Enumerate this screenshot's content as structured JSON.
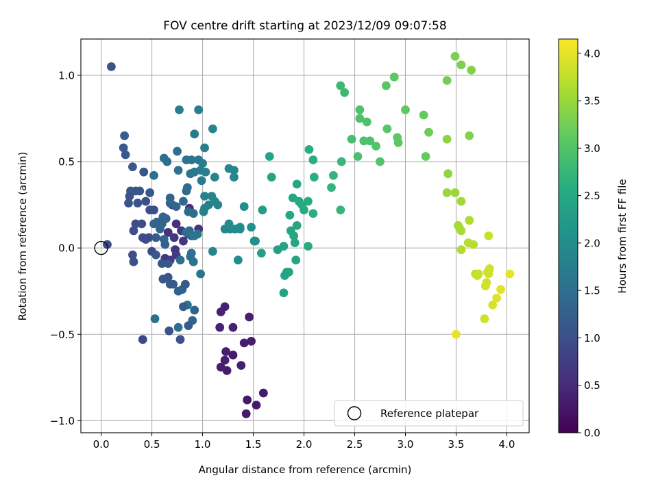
{
  "chart_data": {
    "type": "scatter",
    "title": "FOV centre drift starting at 2023/12/09 09:07:58",
    "xlabel": "Angular distance from reference (arcmin)",
    "ylabel": "Rotation from reference (arcmin)",
    "xlim": [
      -0.2,
      4.22
    ],
    "ylim": [
      -1.07,
      1.21
    ],
    "xticks": [
      0.0,
      0.5,
      1.0,
      1.5,
      2.0,
      2.5,
      3.0,
      3.5,
      4.0
    ],
    "xtick_labels": [
      "0.0",
      "0.5",
      "1.0",
      "1.5",
      "2.0",
      "2.5",
      "3.0",
      "3.5",
      "4.0"
    ],
    "yticks": [
      -1.0,
      -0.5,
      0.0,
      0.5,
      1.0
    ],
    "ytick_labels": [
      "−1.0",
      "−0.5",
      "0.0",
      "0.5",
      "1.0"
    ],
    "grid": true,
    "legend": {
      "position": "lower-right",
      "entries": [
        "Reference platepar"
      ]
    },
    "reference_point": {
      "x": 0.0,
      "y": 0.0,
      "marker": "open-circle"
    },
    "colorbar": {
      "label": "Hours from first FF file",
      "colormap": "viridis",
      "range": [
        0.0,
        4.15
      ],
      "ticks": [
        0.0,
        0.5,
        1.0,
        1.5,
        2.0,
        2.5,
        3.0,
        3.5,
        4.0
      ],
      "tick_labels": [
        "0.0",
        "0.5",
        "1.0",
        "1.5",
        "2.0",
        "2.5",
        "3.0",
        "3.5",
        "4.0"
      ]
    },
    "points": [
      [
        1.43,
        -0.96,
        0.3
      ],
      [
        1.44,
        -0.88,
        0.3
      ],
      [
        1.53,
        -0.91,
        0.3
      ],
      [
        1.6,
        -0.84,
        0.3
      ],
      [
        1.24,
        -0.71,
        0.3
      ],
      [
        1.3,
        -0.62,
        0.3
      ],
      [
        1.18,
        -0.69,
        0.35
      ],
      [
        1.22,
        -0.65,
        0.35
      ],
      [
        1.23,
        -0.6,
        0.35
      ],
      [
        1.38,
        -0.68,
        0.35
      ],
      [
        1.41,
        -0.55,
        0.35
      ],
      [
        1.48,
        -0.54,
        0.35
      ],
      [
        1.46,
        -0.4,
        0.35
      ],
      [
        1.3,
        -0.46,
        0.4
      ],
      [
        1.17,
        -0.46,
        0.4
      ],
      [
        1.18,
        -0.37,
        0.4
      ],
      [
        1.22,
        -0.34,
        0.4
      ],
      [
        0.96,
        0.11,
        0.6
      ],
      [
        0.87,
        0.23,
        0.6
      ],
      [
        0.74,
        0.14,
        0.6
      ],
      [
        0.66,
        0.09,
        0.6
      ],
      [
        0.58,
        0.13,
        0.6
      ],
      [
        0.72,
        0.06,
        0.65
      ],
      [
        0.81,
        0.04,
        0.65
      ],
      [
        0.86,
        0.08,
        0.65
      ],
      [
        0.73,
        -0.01,
        0.65
      ],
      [
        0.63,
        -0.06,
        0.65
      ],
      [
        0.68,
        -0.07,
        0.7
      ],
      [
        0.74,
        -0.04,
        0.7
      ],
      [
        0.79,
        0.1,
        0.7
      ],
      [
        0.7,
        0.25,
        0.7
      ],
      [
        0.1,
        1.05,
        1.05
      ],
      [
        0.23,
        0.65,
        1.2
      ],
      [
        0.22,
        0.58,
        1.2
      ],
      [
        0.24,
        0.54,
        1.15
      ],
      [
        0.31,
        0.47,
        1.15
      ],
      [
        0.42,
        0.44,
        1.1
      ],
      [
        0.48,
        0.32,
        1.1
      ],
      [
        0.29,
        0.33,
        1.1
      ],
      [
        0.34,
        0.33,
        1.1
      ],
      [
        0.38,
        0.33,
        1.1
      ],
      [
        0.28,
        0.3,
        1.05
      ],
      [
        0.27,
        0.26,
        1.05
      ],
      [
        0.36,
        0.26,
        1.05
      ],
      [
        0.44,
        0.27,
        1.0
      ],
      [
        0.48,
        0.22,
        1.0
      ],
      [
        0.52,
        0.22,
        1.0
      ],
      [
        0.34,
        0.14,
        1.0
      ],
      [
        0.4,
        0.14,
        1.0
      ],
      [
        0.32,
        0.1,
        1.0
      ],
      [
        0.41,
        0.06,
        1.0
      ],
      [
        0.47,
        0.06,
        0.95
      ],
      [
        0.44,
        0.05,
        0.95
      ],
      [
        0.5,
        -0.02,
        0.95
      ],
      [
        0.06,
        0.02,
        0.95
      ],
      [
        0.31,
        -0.04,
        1.0
      ],
      [
        0.32,
        -0.08,
        1.0
      ],
      [
        0.41,
        -0.53,
        0.9
      ],
      [
        0.67,
        -0.48,
        1.05
      ],
      [
        0.78,
        -0.53,
        1.05
      ],
      [
        0.53,
        -0.41,
        1.5
      ],
      [
        0.76,
        -0.46,
        1.5
      ],
      [
        0.9,
        -0.42,
        1.3
      ],
      [
        0.92,
        -0.36,
        1.3
      ],
      [
        0.85,
        -0.33,
        1.55
      ],
      [
        0.81,
        -0.34,
        1.2
      ],
      [
        0.86,
        -0.45,
        1.2
      ],
      [
        0.8,
        -0.24,
        1.3
      ],
      [
        0.76,
        -0.25,
        1.3
      ],
      [
        0.83,
        -0.21,
        1.2
      ],
      [
        0.66,
        -0.17,
        1.1
      ],
      [
        0.61,
        -0.18,
        1.1
      ],
      [
        0.68,
        -0.21,
        1.2
      ],
      [
        0.71,
        -0.21,
        1.2
      ],
      [
        0.66,
        -0.09,
        1.1
      ],
      [
        0.6,
        -0.09,
        1.1
      ],
      [
        0.54,
        -0.04,
        1.15
      ],
      [
        0.54,
        0.06,
        1.2
      ],
      [
        0.58,
        0.11,
        1.35
      ],
      [
        0.52,
        0.14,
        1.35
      ],
      [
        0.55,
        0.15,
        1.35
      ],
      [
        0.6,
        0.14,
        1.35
      ],
      [
        0.64,
        0.17,
        1.35
      ],
      [
        0.61,
        0.18,
        1.35
      ],
      [
        0.62,
        0.05,
        1.35
      ],
      [
        0.63,
        0.02,
        1.3
      ],
      [
        0.68,
        0.26,
        1.35
      ],
      [
        0.68,
        0.29,
        1.35
      ],
      [
        0.74,
        0.24,
        1.35
      ],
      [
        0.81,
        0.27,
        1.4
      ],
      [
        0.84,
        0.33,
        1.45
      ],
      [
        0.85,
        0.35,
        1.45
      ],
      [
        0.87,
        0.1,
        1.45
      ],
      [
        0.89,
        0.07,
        1.45
      ],
      [
        0.91,
        0.2,
        1.45
      ],
      [
        0.86,
        0.21,
        1.45
      ],
      [
        0.84,
        0.09,
        1.5
      ],
      [
        0.89,
        -0.03,
        1.55
      ],
      [
        0.88,
        -0.05,
        1.55
      ],
      [
        0.78,
        -0.07,
        1.5
      ],
      [
        0.91,
        -0.08,
        1.55
      ],
      [
        0.98,
        -0.15,
        1.6
      ],
      [
        0.92,
        0.07,
        1.6
      ],
      [
        0.95,
        0.08,
        1.6
      ],
      [
        0.62,
        0.52,
        1.5
      ],
      [
        0.65,
        0.5,
        1.5
      ],
      [
        0.52,
        0.42,
        1.5
      ],
      [
        0.75,
        0.56,
        1.55
      ],
      [
        0.76,
        0.45,
        1.55
      ],
      [
        0.84,
        0.51,
        1.6
      ],
      [
        0.89,
        0.51,
        1.6
      ],
      [
        0.88,
        0.43,
        1.6
      ],
      [
        0.92,
        0.44,
        1.65
      ],
      [
        0.96,
        0.51,
        1.65
      ],
      [
        1.0,
        0.49,
        1.7
      ],
      [
        0.98,
        0.45,
        1.7
      ],
      [
        0.99,
        0.39,
        1.7
      ],
      [
        0.92,
        0.66,
        1.7
      ],
      [
        0.77,
        0.8,
        1.75
      ],
      [
        0.96,
        0.8,
        1.75
      ],
      [
        1.02,
        0.58,
        1.75
      ],
      [
        1.03,
        0.44,
        1.8
      ],
      [
        1.02,
        0.3,
        1.8
      ],
      [
        1.06,
        0.25,
        1.8
      ],
      [
        1.02,
        0.23,
        1.8
      ],
      [
        1.01,
        0.21,
        1.8
      ],
      [
        1.09,
        0.3,
        1.85
      ],
      [
        1.12,
        0.27,
        1.85
      ],
      [
        1.15,
        0.25,
        1.85
      ],
      [
        1.12,
        0.41,
        1.85
      ],
      [
        1.1,
        0.69,
        1.85
      ],
      [
        1.1,
        -0.02,
        1.85
      ],
      [
        1.31,
        0.41,
        1.9
      ],
      [
        1.31,
        0.45,
        1.9
      ],
      [
        1.26,
        0.46,
        1.9
      ],
      [
        1.27,
        0.11,
        1.9
      ],
      [
        1.22,
        0.11,
        1.9
      ],
      [
        1.26,
        0.14,
        1.95
      ],
      [
        1.32,
        0.11,
        2.0
      ],
      [
        1.37,
        0.12,
        2.0
      ],
      [
        1.37,
        0.11,
        2.0
      ],
      [
        1.41,
        0.24,
        2.0
      ],
      [
        1.48,
        0.12,
        2.05
      ],
      [
        1.51,
        0.04,
        2.05
      ],
      [
        1.52,
        0.04,
        2.05
      ],
      [
        1.35,
        -0.07,
        2.0
      ],
      [
        1.59,
        0.22,
        2.3
      ],
      [
        1.58,
        -0.03,
        2.3
      ],
      [
        1.66,
        0.53,
        2.4
      ],
      [
        1.68,
        0.41,
        2.4
      ],
      [
        1.74,
        -0.01,
        2.35
      ],
      [
        1.8,
        0.01,
        2.4
      ],
      [
        1.8,
        -0.26,
        2.4
      ],
      [
        1.81,
        -0.16,
        2.4
      ],
      [
        1.83,
        -0.14,
        2.4
      ],
      [
        1.85,
        -0.14,
        2.4
      ],
      [
        1.86,
        0.19,
        2.45
      ],
      [
        1.87,
        0.1,
        2.45
      ],
      [
        1.89,
        0.29,
        2.45
      ],
      [
        1.9,
        0.07,
        2.45
      ],
      [
        1.91,
        0.03,
        2.45
      ],
      [
        1.92,
        -0.07,
        2.45
      ],
      [
        1.93,
        0.13,
        2.45
      ],
      [
        1.93,
        0.37,
        2.45
      ],
      [
        1.95,
        0.27,
        2.5
      ],
      [
        1.98,
        0.25,
        2.5
      ],
      [
        2.0,
        0.22,
        2.5
      ],
      [
        2.04,
        0.27,
        2.55
      ],
      [
        2.04,
        0.01,
        2.55
      ],
      [
        2.05,
        0.57,
        2.6
      ],
      [
        2.09,
        0.51,
        2.6
      ],
      [
        2.09,
        0.2,
        2.6
      ],
      [
        2.1,
        0.41,
        2.6
      ],
      [
        2.27,
        0.35,
        2.7
      ],
      [
        2.29,
        0.42,
        2.7
      ],
      [
        2.36,
        0.22,
        2.75
      ],
      [
        2.37,
        0.5,
        2.75
      ],
      [
        2.36,
        0.94,
        2.8
      ],
      [
        2.4,
        0.9,
        2.8
      ],
      [
        2.47,
        0.63,
        2.9
      ],
      [
        2.53,
        0.53,
        2.9
      ],
      [
        2.55,
        0.8,
        2.95
      ],
      [
        2.55,
        0.75,
        2.95
      ],
      [
        2.59,
        0.62,
        2.95
      ],
      [
        2.62,
        0.73,
        2.95
      ],
      [
        2.65,
        0.62,
        2.95
      ],
      [
        2.71,
        0.59,
        3.0
      ],
      [
        2.75,
        0.5,
        3.0
      ],
      [
        2.81,
        0.94,
        3.05
      ],
      [
        2.82,
        0.69,
        3.05
      ],
      [
        2.89,
        0.99,
        3.1
      ],
      [
        2.92,
        0.64,
        3.1
      ],
      [
        2.93,
        0.61,
        3.1
      ],
      [
        3.0,
        0.8,
        3.1
      ],
      [
        3.18,
        0.77,
        3.15
      ],
      [
        3.2,
        0.53,
        3.15
      ],
      [
        3.23,
        0.67,
        3.2
      ],
      [
        3.41,
        0.97,
        3.25
      ],
      [
        3.49,
        1.11,
        3.3
      ],
      [
        3.55,
        1.06,
        3.3
      ],
      [
        3.65,
        1.03,
        3.35
      ],
      [
        3.63,
        0.65,
        3.35
      ],
      [
        3.41,
        0.63,
        3.4
      ],
      [
        3.42,
        0.43,
        3.45
      ],
      [
        3.41,
        0.32,
        3.5
      ],
      [
        3.49,
        0.32,
        3.5
      ],
      [
        3.55,
        0.27,
        3.55
      ],
      [
        3.52,
        0.13,
        3.55
      ],
      [
        3.55,
        0.1,
        3.6
      ],
      [
        3.53,
        0.12,
        3.6
      ],
      [
        3.55,
        -0.01,
        3.65
      ],
      [
        3.63,
        0.16,
        3.65
      ],
      [
        3.62,
        0.03,
        3.7
      ],
      [
        3.67,
        0.02,
        3.7
      ],
      [
        3.69,
        -0.15,
        3.75
      ],
      [
        3.72,
        -0.15,
        3.75
      ],
      [
        3.71,
        -0.16,
        3.8
      ],
      [
        3.78,
        -0.41,
        3.85
      ],
      [
        3.79,
        -0.22,
        3.85
      ],
      [
        3.8,
        -0.2,
        3.85
      ],
      [
        3.81,
        -0.14,
        3.85
      ],
      [
        3.82,
        -0.15,
        3.85
      ],
      [
        3.83,
        -0.12,
        3.85
      ],
      [
        3.82,
        0.07,
        3.8
      ],
      [
        3.86,
        -0.33,
        3.9
      ],
      [
        3.9,
        -0.29,
        3.95
      ],
      [
        3.94,
        -0.24,
        3.95
      ],
      [
        4.03,
        -0.15,
        4.0
      ],
      [
        3.5,
        -0.5,
        4.0
      ]
    ]
  }
}
